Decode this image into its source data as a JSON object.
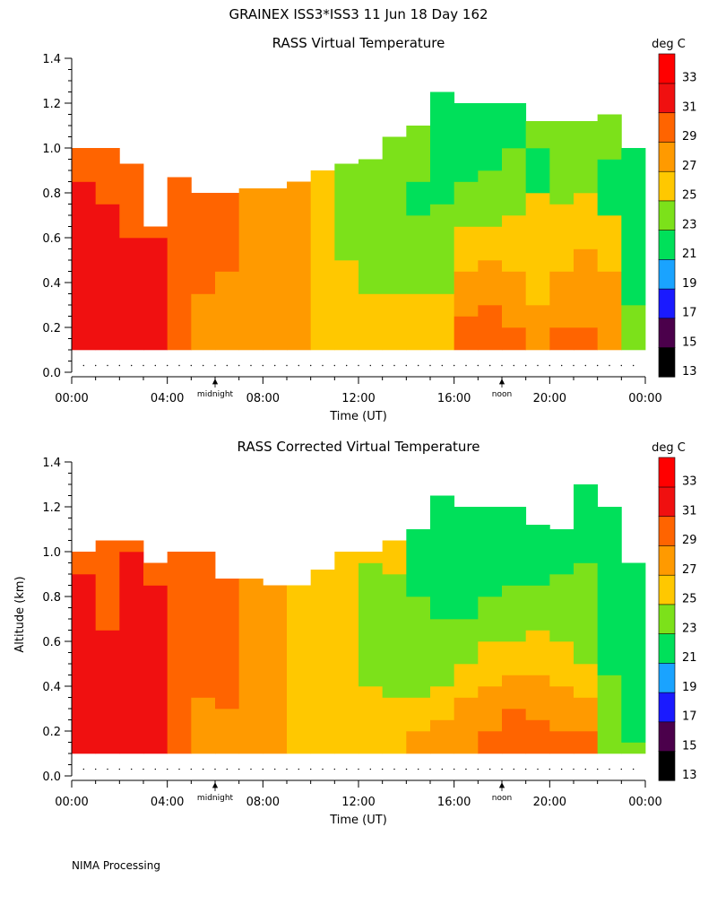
{
  "figure": {
    "title": "GRAINEX ISS3*ISS3  11 Jun 18 Day 162",
    "footer": "NIMA Processing"
  },
  "colorbar": {
    "title": "deg C",
    "levels": [
      13,
      15,
      17,
      19,
      21,
      23,
      25,
      27,
      29,
      31,
      33,
      35
    ],
    "tick_labels": [
      "13",
      "15",
      "17",
      "19",
      "21",
      "23",
      "25",
      "27",
      "29",
      "31",
      "33"
    ],
    "colors": [
      "#000000",
      "#4b004b",
      "#1a1aff",
      "#1aa3ff",
      "#00e05a",
      "#7ce11a",
      "#ffc800",
      "#ff9a00",
      "#ff6400",
      "#f01010",
      "#ff0000"
    ]
  },
  "chart_data": [
    {
      "type": "heatmap",
      "title": "RASS Virtual Temperature",
      "xlabel": "Time (UT)",
      "ylabel": "",
      "x_ticks": [
        "00:00",
        "04:00",
        "08:00",
        "12:00",
        "16:00",
        "20:00",
        "00:00"
      ],
      "xlim_hours": [
        0,
        24
      ],
      "y_ticks": [
        "0.0",
        "0.2",
        "0.4",
        "0.6",
        "0.8",
        "1.0",
        "1.2",
        "1.4"
      ],
      "ylim_km": [
        0,
        1.4
      ],
      "markers": [
        {
          "label": "midnight",
          "hour": 6
        },
        {
          "label": "noon",
          "hour": 18
        }
      ],
      "units": "deg C",
      "columns": [
        {
          "hour": 0.5,
          "top_km": 1.0,
          "bands": [
            [
              0.85,
              31
            ],
            [
              1.0,
              29
            ]
          ]
        },
        {
          "hour": 1.5,
          "top_km": 1.0,
          "bands": [
            [
              0.75,
              31
            ],
            [
              1.0,
              29
            ]
          ]
        },
        {
          "hour": 2.5,
          "top_km": 0.93,
          "bands": [
            [
              0.6,
              31
            ],
            [
              0.93,
              29
            ]
          ]
        },
        {
          "hour": 3.5,
          "top_km": 0.65,
          "bands": [
            [
              0.6,
              31
            ],
            [
              0.65,
              29
            ]
          ]
        },
        {
          "hour": 4.5,
          "top_km": 0.87,
          "bands": [
            [
              0.87,
              29
            ]
          ]
        },
        {
          "hour": 5.5,
          "top_km": 0.8,
          "bands": [
            [
              0.35,
              27
            ],
            [
              0.8,
              29
            ]
          ]
        },
        {
          "hour": 6.5,
          "top_km": 0.8,
          "bands": [
            [
              0.45,
              27
            ],
            [
              0.8,
              29
            ]
          ]
        },
        {
          "hour": 7.5,
          "top_km": 0.82,
          "bands": [
            [
              0.82,
              27
            ]
          ]
        },
        {
          "hour": 8.5,
          "top_km": 0.82,
          "bands": [
            [
              0.82,
              27
            ]
          ]
        },
        {
          "hour": 9.5,
          "top_km": 0.85,
          "bands": [
            [
              0.85,
              27
            ]
          ]
        },
        {
          "hour": 10.5,
          "top_km": 0.9,
          "bands": [
            [
              0.9,
              25
            ]
          ]
        },
        {
          "hour": 11.5,
          "top_km": 0.93,
          "bands": [
            [
              0.5,
              25
            ],
            [
              0.93,
              23
            ]
          ]
        },
        {
          "hour": 12.5,
          "top_km": 0.95,
          "bands": [
            [
              0.35,
              25
            ],
            [
              0.95,
              23
            ]
          ]
        },
        {
          "hour": 13.5,
          "top_km": 1.05,
          "bands": [
            [
              0.35,
              25
            ],
            [
              1.05,
              23
            ]
          ]
        },
        {
          "hour": 14.5,
          "top_km": 1.1,
          "bands": [
            [
              0.35,
              25
            ],
            [
              0.7,
              23
            ],
            [
              0.85,
              21
            ],
            [
              1.1,
              23
            ]
          ]
        },
        {
          "hour": 15.5,
          "top_km": 1.25,
          "bands": [
            [
              0.35,
              25
            ],
            [
              0.75,
              23
            ],
            [
              1.25,
              21
            ]
          ]
        },
        {
          "hour": 16.5,
          "top_km": 1.2,
          "bands": [
            [
              0.25,
              29
            ],
            [
              0.45,
              27
            ],
            [
              0.65,
              25
            ],
            [
              0.85,
              23
            ],
            [
              1.2,
              21
            ]
          ]
        },
        {
          "hour": 17.5,
          "top_km": 1.2,
          "bands": [
            [
              0.3,
              29
            ],
            [
              0.5,
              27
            ],
            [
              0.65,
              25
            ],
            [
              0.9,
              23
            ],
            [
              1.2,
              21
            ]
          ]
        },
        {
          "hour": 18.5,
          "top_km": 1.2,
          "bands": [
            [
              0.2,
              29
            ],
            [
              0.45,
              27
            ],
            [
              0.7,
              25
            ],
            [
              1.0,
              23
            ],
            [
              1.2,
              21
            ]
          ]
        },
        {
          "hour": 19.5,
          "top_km": 1.12,
          "bands": [
            [
              0.3,
              27
            ],
            [
              0.8,
              25
            ],
            [
              1.0,
              21
            ],
            [
              1.12,
              23
            ]
          ]
        },
        {
          "hour": 20.5,
          "top_km": 1.12,
          "bands": [
            [
              0.2,
              29
            ],
            [
              0.45,
              27
            ],
            [
              0.75,
              25
            ],
            [
              1.12,
              23
            ]
          ]
        },
        {
          "hour": 21.5,
          "top_km": 1.12,
          "bands": [
            [
              0.2,
              29
            ],
            [
              0.55,
              27
            ],
            [
              0.8,
              25
            ],
            [
              1.12,
              23
            ]
          ]
        },
        {
          "hour": 22.5,
          "top_km": 1.15,
          "bands": [
            [
              0.45,
              27
            ],
            [
              0.7,
              25
            ],
            [
              0.95,
              21
            ],
            [
              1.15,
              23
            ]
          ]
        },
        {
          "hour": 23.5,
          "top_km": 1.0,
          "bands": [
            [
              0.3,
              23
            ],
            [
              1.0,
              21
            ]
          ]
        }
      ]
    },
    {
      "type": "heatmap",
      "title": "RASS Corrected Virtual Temperature",
      "xlabel": "Time (UT)",
      "ylabel": "Altitude (km)",
      "x_ticks": [
        "00:00",
        "04:00",
        "08:00",
        "12:00",
        "16:00",
        "20:00",
        "00:00"
      ],
      "xlim_hours": [
        0,
        24
      ],
      "y_ticks": [
        "0.0",
        "0.2",
        "0.4",
        "0.6",
        "0.8",
        "1.0",
        "1.2",
        "1.4"
      ],
      "ylim_km": [
        0,
        1.4
      ],
      "markers": [
        {
          "label": "midnight",
          "hour": 6
        },
        {
          "label": "noon",
          "hour": 18
        }
      ],
      "units": "deg C",
      "columns": [
        {
          "hour": 0.5,
          "top_km": 1.0,
          "bands": [
            [
              0.9,
              31
            ],
            [
              1.0,
              29
            ]
          ]
        },
        {
          "hour": 1.5,
          "top_km": 1.05,
          "bands": [
            [
              0.65,
              31
            ],
            [
              1.05,
              29
            ]
          ]
        },
        {
          "hour": 2.5,
          "top_km": 1.05,
          "bands": [
            [
              1.0,
              31
            ],
            [
              1.05,
              29
            ]
          ]
        },
        {
          "hour": 3.5,
          "top_km": 0.95,
          "bands": [
            [
              0.85,
              31
            ],
            [
              0.95,
              29
            ]
          ]
        },
        {
          "hour": 4.5,
          "top_km": 1.0,
          "bands": [
            [
              1.0,
              29
            ]
          ]
        },
        {
          "hour": 5.5,
          "top_km": 1.0,
          "bands": [
            [
              0.35,
              27
            ],
            [
              1.0,
              29
            ]
          ]
        },
        {
          "hour": 6.5,
          "top_km": 0.88,
          "bands": [
            [
              0.3,
              27
            ],
            [
              0.88,
              29
            ]
          ]
        },
        {
          "hour": 7.5,
          "top_km": 0.88,
          "bands": [
            [
              0.88,
              27
            ]
          ]
        },
        {
          "hour": 8.5,
          "top_km": 0.85,
          "bands": [
            [
              0.85,
              27
            ]
          ]
        },
        {
          "hour": 9.5,
          "top_km": 0.85,
          "bands": [
            [
              0.85,
              25
            ]
          ]
        },
        {
          "hour": 10.5,
          "top_km": 0.92,
          "bands": [
            [
              0.92,
              25
            ]
          ]
        },
        {
          "hour": 11.5,
          "top_km": 1.0,
          "bands": [
            [
              1.0,
              25
            ]
          ]
        },
        {
          "hour": 12.5,
          "top_km": 1.0,
          "bands": [
            [
              0.4,
              25
            ],
            [
              0.95,
              23
            ],
            [
              1.0,
              25
            ]
          ]
        },
        {
          "hour": 13.5,
          "top_km": 1.05,
          "bands": [
            [
              0.35,
              25
            ],
            [
              0.9,
              23
            ],
            [
              1.05,
              25
            ]
          ]
        },
        {
          "hour": 14.5,
          "top_km": 1.1,
          "bands": [
            [
              0.2,
              27
            ],
            [
              0.35,
              25
            ],
            [
              0.8,
              23
            ],
            [
              1.1,
              21
            ]
          ]
        },
        {
          "hour": 15.5,
          "top_km": 1.25,
          "bands": [
            [
              0.25,
              27
            ],
            [
              0.4,
              25
            ],
            [
              0.7,
              23
            ],
            [
              1.25,
              21
            ]
          ]
        },
        {
          "hour": 16.5,
          "top_km": 1.2,
          "bands": [
            [
              0.35,
              27
            ],
            [
              0.5,
              25
            ],
            [
              0.7,
              23
            ],
            [
              1.2,
              21
            ]
          ]
        },
        {
          "hour": 17.5,
          "top_km": 1.2,
          "bands": [
            [
              0.2,
              29
            ],
            [
              0.4,
              27
            ],
            [
              0.6,
              25
            ],
            [
              0.8,
              23
            ],
            [
              1.2,
              21
            ]
          ]
        },
        {
          "hour": 18.5,
          "top_km": 1.2,
          "bands": [
            [
              0.3,
              29
            ],
            [
              0.45,
              27
            ],
            [
              0.6,
              25
            ],
            [
              0.85,
              23
            ],
            [
              1.2,
              21
            ]
          ]
        },
        {
          "hour": 19.5,
          "top_km": 1.12,
          "bands": [
            [
              0.25,
              29
            ],
            [
              0.45,
              27
            ],
            [
              0.65,
              25
            ],
            [
              0.85,
              23
            ],
            [
              1.12,
              21
            ]
          ]
        },
        {
          "hour": 20.5,
          "top_km": 1.1,
          "bands": [
            [
              0.2,
              29
            ],
            [
              0.4,
              27
            ],
            [
              0.6,
              25
            ],
            [
              0.9,
              23
            ],
            [
              1.1,
              21
            ]
          ]
        },
        {
          "hour": 21.5,
          "top_km": 1.3,
          "bands": [
            [
              0.2,
              29
            ],
            [
              0.35,
              27
            ],
            [
              0.5,
              25
            ],
            [
              0.95,
              23
            ],
            [
              1.3,
              21
            ]
          ]
        },
        {
          "hour": 22.5,
          "top_km": 1.2,
          "bands": [
            [
              0.45,
              23
            ],
            [
              1.2,
              21
            ]
          ]
        },
        {
          "hour": 23.5,
          "top_km": 0.95,
          "bands": [
            [
              0.15,
              23
            ],
            [
              0.95,
              21
            ]
          ]
        }
      ]
    }
  ]
}
